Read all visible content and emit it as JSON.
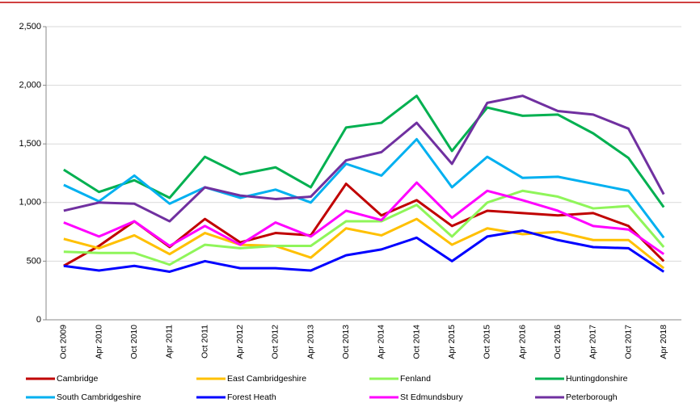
{
  "chart_data": {
    "type": "line",
    "categories": [
      "Oct 2009",
      "Apr 2010",
      "Oct 2010",
      "Apr 2011",
      "Oct 2011",
      "Apr 2012",
      "Oct 2012",
      "Apr 2013",
      "Oct 2013",
      "Apr 2014",
      "Oct 2014",
      "Apr 2015",
      "Oct 2015",
      "Apr 2016",
      "Oct 2016",
      "Apr 2017",
      "Oct 2017",
      "Apr 2018"
    ],
    "series": [
      {
        "name": "Cambridge",
        "color": "#c00000",
        "values": [
          460,
          630,
          840,
          620,
          860,
          660,
          740,
          720,
          1160,
          890,
          1020,
          800,
          930,
          910,
          890,
          910,
          800,
          500
        ]
      },
      {
        "name": "East Cambridgeshire",
        "color": "#ffc000",
        "values": [
          690,
          610,
          720,
          560,
          740,
          640,
          630,
          530,
          780,
          720,
          860,
          640,
          780,
          730,
          750,
          680,
          680,
          440
        ]
      },
      {
        "name": "Fenland",
        "color": "#8ff55a",
        "values": [
          580,
          570,
          570,
          470,
          640,
          610,
          630,
          630,
          840,
          840,
          980,
          710,
          1000,
          1100,
          1050,
          950,
          970,
          620
        ]
      },
      {
        "name": "Huntingdonshire",
        "color": "#00b050",
        "values": [
          1280,
          1090,
          1190,
          1040,
          1390,
          1240,
          1300,
          1130,
          1640,
          1680,
          1910,
          1440,
          1810,
          1740,
          1750,
          1590,
          1380,
          960
        ]
      },
      {
        "name": "South Cambridgeshire",
        "color": "#00b0f0",
        "values": [
          1150,
          1010,
          1230,
          990,
          1130,
          1040,
          1110,
          1000,
          1330,
          1230,
          1540,
          1130,
          1390,
          1210,
          1220,
          1160,
          1100,
          700
        ]
      },
      {
        "name": "Forest Heath",
        "color": "#0000ff",
        "values": [
          460,
          420,
          460,
          410,
          500,
          440,
          440,
          420,
          550,
          600,
          700,
          500,
          710,
          760,
          680,
          620,
          610,
          410
        ]
      },
      {
        "name": "St Edmundsbury",
        "color": "#ff00ff",
        "values": [
          830,
          710,
          840,
          630,
          800,
          640,
          830,
          710,
          930,
          850,
          1170,
          870,
          1100,
          1020,
          930,
          800,
          770,
          560
        ]
      },
      {
        "name": "Peterborough",
        "color": "#7030a0",
        "values": [
          930,
          1000,
          990,
          840,
          1130,
          1060,
          1030,
          1050,
          1360,
          1430,
          1680,
          1330,
          1850,
          1910,
          1780,
          1750,
          1630,
          1070
        ]
      }
    ],
    "ylim": [
      0,
      2500
    ],
    "yticks": [
      0,
      500,
      {
        "value": 1000,
        "label": "1,000"
      },
      {
        "value": 1500,
        "label": "1,500"
      },
      {
        "value": 2000,
        "label": "2,000"
      },
      {
        "value": 2500,
        "label": "2,500"
      }
    ],
    "grid": true
  }
}
